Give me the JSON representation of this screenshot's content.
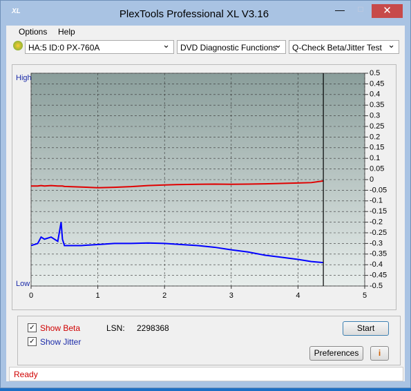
{
  "window": {
    "title": "PlexTools Professional XL V3.16"
  },
  "menu": [
    "Options",
    "Help"
  ],
  "toolbar": {
    "drive": "HA:5 ID:0  PX-760A",
    "function": "DVD Diagnostic Functions",
    "test": "Q-Check Beta/Jitter Test"
  },
  "chart_data": {
    "type": "line",
    "y_high_label": "High",
    "y_low_label": "Low",
    "x": [
      0,
      0.1,
      0.15,
      0.2,
      0.3,
      0.4,
      0.45,
      0.47,
      0.5,
      0.75,
      1,
      1.25,
      1.5,
      1.75,
      2,
      2.25,
      2.5,
      2.75,
      3,
      3.25,
      3.5,
      3.75,
      4,
      4.2,
      4.38
    ],
    "series": [
      {
        "color": "#e00000",
        "values": [
          -0.03,
          -0.03,
          -0.028,
          -0.03,
          -0.028,
          -0.03,
          -0.03,
          -0.03,
          -0.032,
          -0.035,
          -0.038,
          -0.036,
          -0.033,
          -0.028,
          -0.025,
          -0.023,
          -0.022,
          -0.021,
          -0.022,
          -0.021,
          -0.02,
          -0.018,
          -0.016,
          -0.014,
          -0.006
        ]
      },
      {
        "color": "#0000ff",
        "values": [
          -0.31,
          -0.3,
          -0.27,
          -0.28,
          -0.27,
          -0.29,
          -0.2,
          -0.28,
          -0.31,
          -0.31,
          -0.305,
          -0.3,
          -0.3,
          -0.298,
          -0.3,
          -0.305,
          -0.31,
          -0.318,
          -0.33,
          -0.34,
          -0.355,
          -0.365,
          -0.375,
          -0.385,
          -0.39
        ]
      }
    ],
    "xlim": [
      0,
      5
    ],
    "xticks": [
      0,
      1,
      2,
      3,
      4,
      5
    ],
    "ylim": [
      -0.5,
      0.5
    ],
    "yticks": [
      0.5,
      0.45,
      0.4,
      0.35,
      0.3,
      0.25,
      0.2,
      0.15,
      0.1,
      0.05,
      0,
      -0.05,
      -0.1,
      -0.15,
      -0.2,
      -0.25,
      -0.3,
      -0.35,
      -0.4,
      -0.45,
      -0.5
    ],
    "grid": true
  },
  "controls": {
    "show_beta": "Show Beta",
    "show_jitter": "Show Jitter",
    "lsn_label": "LSN:",
    "lsn_value": "2298368",
    "start": "Start",
    "preferences": "Preferences"
  },
  "status": "Ready"
}
